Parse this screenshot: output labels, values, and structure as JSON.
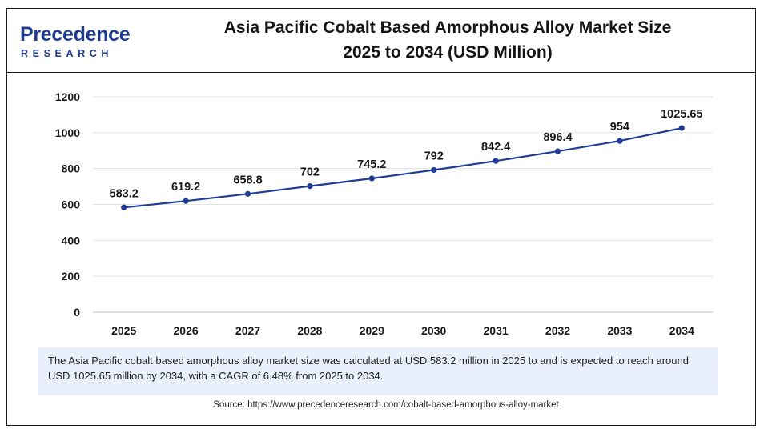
{
  "brand": {
    "name": "Precedence",
    "sub": "RESEARCH",
    "color": "#1d3b8f"
  },
  "header": {
    "title_line1": "Asia Pacific Cobalt Based Amorphous Alloy Market Size",
    "title_line2": "2025 to 2034 (USD Million)"
  },
  "chart_data": {
    "type": "line",
    "x": [
      "2025",
      "2026",
      "2027",
      "2028",
      "2029",
      "2030",
      "2031",
      "2032",
      "2033",
      "2034"
    ],
    "series": [
      {
        "values": [
          583.2,
          619.2,
          658.8,
          702,
          745.2,
          792,
          842.4,
          896.4,
          954,
          1025.65
        ],
        "labels": [
          "583.2",
          "619.2",
          "658.8",
          "702",
          "745.2",
          "792",
          "842.4",
          "896.4",
          "954",
          "1025.65"
        ],
        "color": "#1f3c96"
      }
    ],
    "yticks": [
      "0",
      "200",
      "400",
      "600",
      "800",
      "1000",
      "1200"
    ],
    "ylim": [
      0,
      1200
    ],
    "grid": true,
    "legend": "none"
  },
  "note": {
    "text": "The Asia Pacific  cobalt based amorphous alloy market size was calculated at USD 583.2 million in 2025 to and is expected to reach around USD 1025.65 million by 2034, with a CAGR of 6.48% from 2025 to 2034."
  },
  "source": {
    "text": "Source: https://www.precedenceresearch.com/cobalt-based-amorphous-alloy-market"
  }
}
